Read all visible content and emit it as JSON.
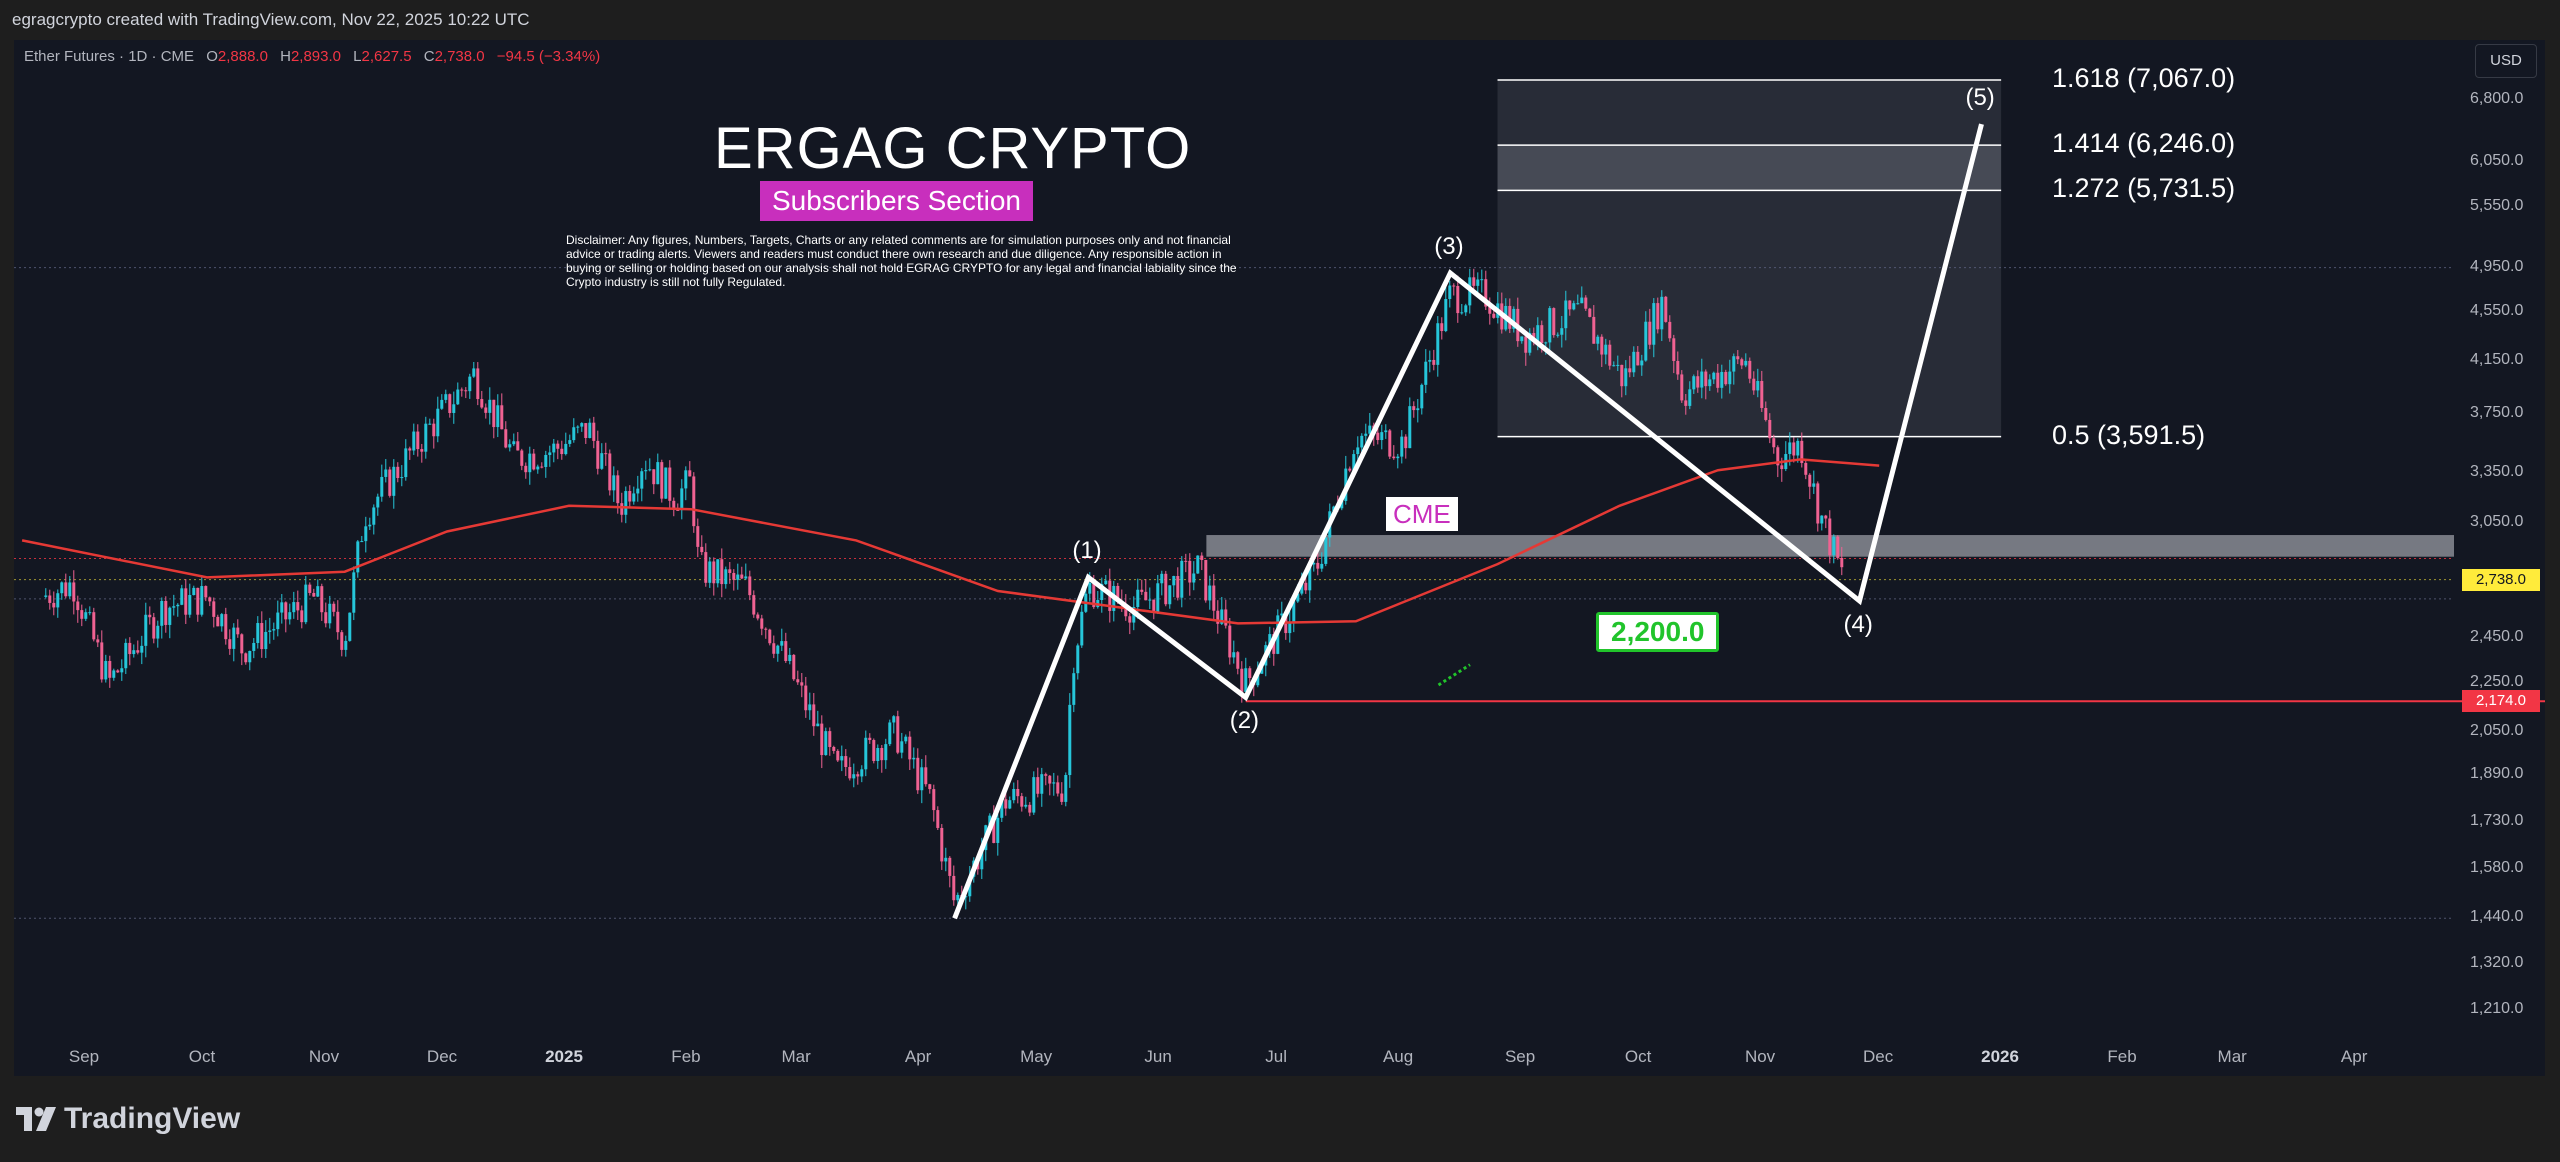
{
  "header": {
    "caption": "egragcrypto created with TradingView.com, Nov 22, 2025 10:22 UTC"
  },
  "legend": {
    "symbol": "Ether Futures · 1D · CME",
    "o_label": "O",
    "o_value": "2,888.0",
    "h_label": "H",
    "h_value": "2,893.0",
    "l_label": "L",
    "l_value": "2,627.5",
    "c_label": "C",
    "c_value": "2,738.0",
    "change": "−94.5 (−3.34%)"
  },
  "currency_button": "USD",
  "annotations": {
    "brand": "ERGAG CRYPTO",
    "subscribers": "Subscribers Section",
    "disclaimer": "Disclaimer: Any figures, Numbers, Targets, Charts or any related comments are for simulation purposes only and not financial advice or trading alerts. Viewers and readers must conduct there own research and due diligence. Any responsible action in buying or selling or holding based on our analysis shall not hold EGRAG CRYPTO for any legal and financial labiality since the Crypto industry is still not fully Regulated.",
    "cme_label": "CME",
    "target_label": "2,200.0"
  },
  "price_tags": {
    "last": "2,738.0",
    "support": "2,174.0"
  },
  "footer": {
    "brand": "TradingView"
  },
  "colors": {
    "background": "#131722",
    "bull": "#26c6da",
    "bear": "#f06292",
    "ma": "#e53935",
    "support": "#f23645",
    "last": "#ffeb3b"
  },
  "chart_data": {
    "type": "candlestick",
    "title": "Ether Futures · 1D · CME",
    "ohlc": {
      "open": 2888.0,
      "high": 2893.0,
      "low": 2627.5,
      "close": 2738.0,
      "change": -94.5,
      "change_pct": -3.34
    },
    "y_scale": "log",
    "ylim": [
      1100,
      7400
    ],
    "y_ticks": [
      "6,800.0",
      "6,050.0",
      "5,550.0",
      "4,950.0",
      "4,550.0",
      "4,150.0",
      "3,750.0",
      "3,350.0",
      "3,050.0",
      "2,738.0",
      "2,450.0",
      "2,250.0",
      "2,174.0",
      "2,050.0",
      "1,890.0",
      "1,730.0",
      "1,580.0",
      "1,440.0",
      "1,320.0",
      "1,210.0"
    ],
    "x_ticks": [
      "Sep",
      "Oct",
      "Nov",
      "Dec",
      "2025",
      "Feb",
      "Mar",
      "Apr",
      "May",
      "Jun",
      "Jul",
      "Aug",
      "Sep",
      "Oct",
      "Nov",
      "Dec",
      "2026",
      "Feb",
      "Mar",
      "Apr"
    ],
    "price_path": [
      [
        "2024-08-20",
        2650
      ],
      [
        "2024-08-28",
        2720
      ],
      [
        "2024-09-06",
        2250
      ],
      [
        "2024-09-20",
        2600
      ],
      [
        "2024-10-01",
        2650
      ],
      [
        "2024-10-10",
        2400
      ],
      [
        "2024-10-28",
        2650
      ],
      [
        "2024-11-05",
        2450
      ],
      [
        "2024-11-10",
        3100
      ],
      [
        "2024-11-25",
        3600
      ],
      [
        "2024-12-08",
        4050
      ],
      [
        "2024-12-18",
        3450
      ],
      [
        "2024-12-28",
        3500
      ],
      [
        "2025-01-06",
        3650
      ],
      [
        "2025-01-14",
        3150
      ],
      [
        "2025-01-20",
        3450
      ],
      [
        "2025-01-28",
        3200
      ],
      [
        "2025-02-01",
        3300
      ],
      [
        "2025-02-03",
        2800
      ],
      [
        "2025-02-15",
        2700
      ],
      [
        "2025-02-25",
        2350
      ],
      [
        "2025-03-10",
        1900
      ],
      [
        "2025-03-25",
        2050
      ],
      [
        "2025-04-03",
        1800
      ],
      [
        "2025-04-09",
        1480
      ],
      [
        "2025-04-22",
        1800
      ],
      [
        "2025-05-07",
        1850
      ],
      [
        "2025-05-09",
        2350
      ],
      [
        "2025-05-13",
        2700
      ],
      [
        "2025-05-25",
        2600
      ],
      [
        "2025-06-10",
        2800
      ],
      [
        "2025-06-22",
        2250
      ],
      [
        "2025-07-01",
        2500
      ],
      [
        "2025-07-10",
        2800
      ],
      [
        "2025-07-20",
        3600
      ],
      [
        "2025-08-01",
        3550
      ],
      [
        "2025-08-13",
        4700
      ],
      [
        "2025-08-22",
        4700
      ],
      [
        "2025-09-01",
        4350
      ],
      [
        "2025-09-15",
        4550
      ],
      [
        "2025-09-26",
        4000
      ],
      [
        "2025-10-06",
        4650
      ],
      [
        "2025-10-11",
        3900
      ],
      [
        "2025-10-27",
        4150
      ],
      [
        "2025-11-04",
        3450
      ],
      [
        "2025-11-10",
        3550
      ],
      [
        "2025-11-15",
        3100
      ],
      [
        "2025-11-21",
        2738
      ]
    ],
    "moving_average": [
      [
        "2024-08-15",
        2950
      ],
      [
        "2024-10-01",
        2750
      ],
      [
        "2024-11-05",
        2780
      ],
      [
        "2024-12-01",
        3000
      ],
      [
        "2025-01-01",
        3150
      ],
      [
        "2025-02-01",
        3130
      ],
      [
        "2025-03-15",
        2950
      ],
      [
        "2025-04-20",
        2680
      ],
      [
        "2025-05-20",
        2600
      ],
      [
        "2025-06-20",
        2520
      ],
      [
        "2025-07-20",
        2530
      ],
      [
        "2025-08-25",
        2820
      ],
      [
        "2025-09-25",
        3150
      ],
      [
        "2025-10-20",
        3370
      ],
      [
        "2025-11-10",
        3440
      ],
      [
        "2025-11-30",
        3400
      ]
    ],
    "elliott_waves": [
      {
        "label": "",
        "date": "2025-04-09",
        "price": 1440
      },
      {
        "label": "(1)",
        "date": "2025-05-13",
        "price": 2750
      },
      {
        "label": "(2)",
        "date": "2025-06-22",
        "price": 2190
      },
      {
        "label": "(3)",
        "date": "2025-08-13",
        "price": 4900
      },
      {
        "label": "(4)",
        "date": "2025-11-25",
        "price": 2630
      },
      {
        "label": "(5)",
        "date": "2025-12-26",
        "price": 6500
      }
    ],
    "fib_levels": [
      {
        "label": "1.618 (7,067.0)",
        "price": 7067.0
      },
      {
        "label": "1.414 (6,246.0)",
        "price": 6246.0
      },
      {
        "label": "1.272 (5,731.5)",
        "price": 5731.5
      },
      {
        "label": "0.5 (3,591.5)",
        "price": 3591.5
      }
    ],
    "support_line": 2174.0,
    "target": 2200.0,
    "cme_gap": [
      2860,
      2980
    ],
    "last_price": 2738.0
  }
}
